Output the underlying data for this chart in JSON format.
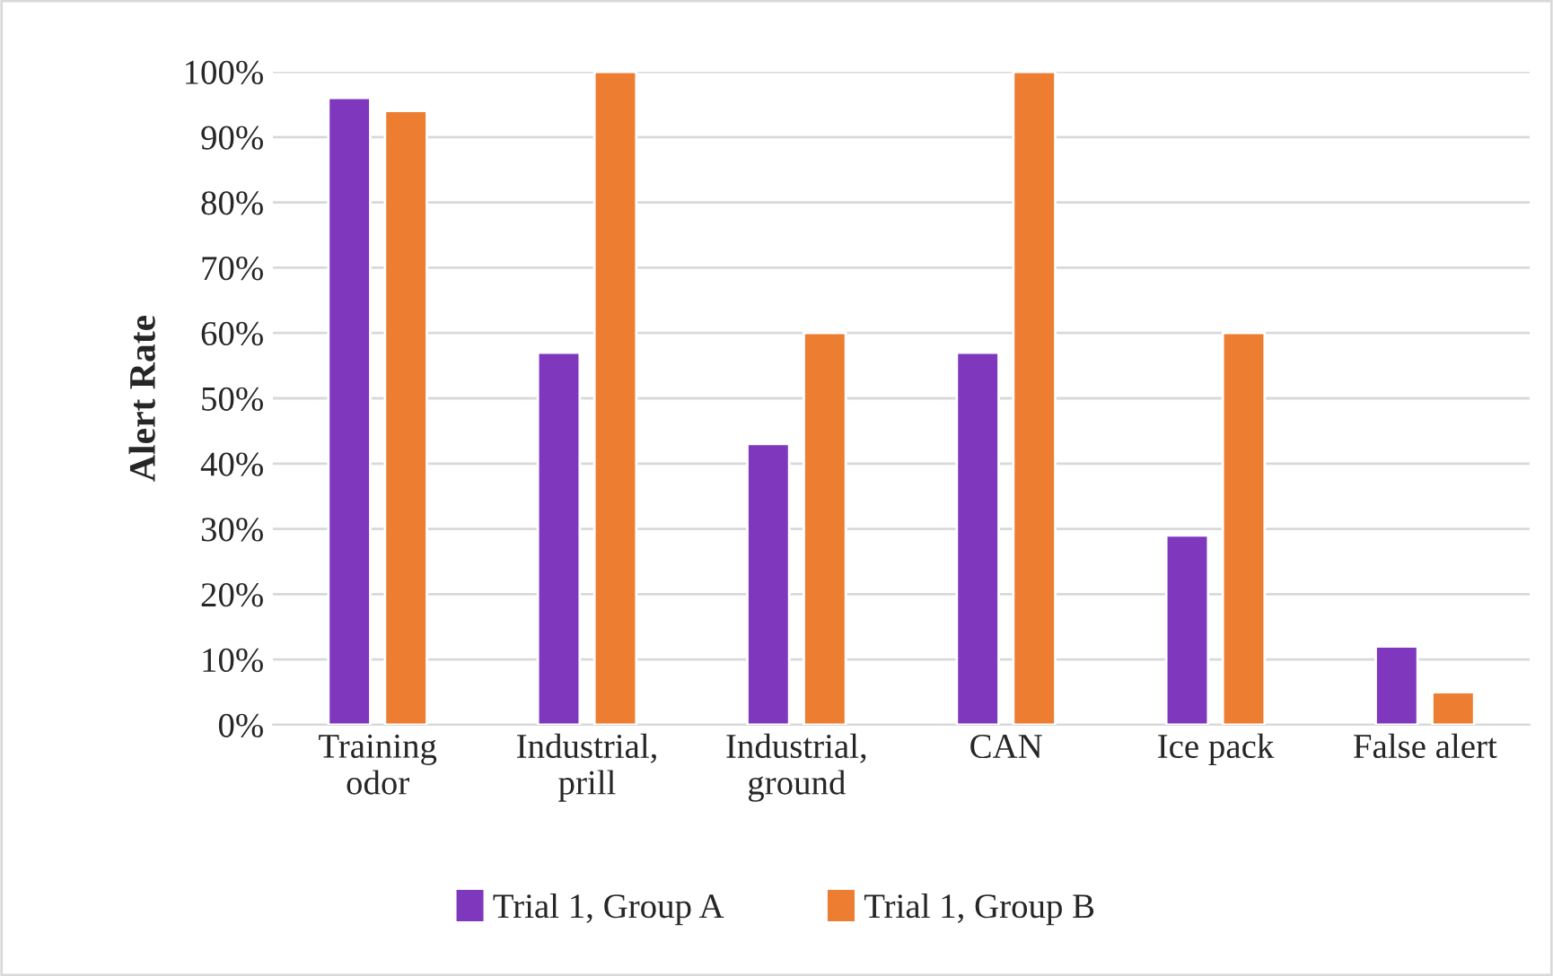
{
  "chart_data": {
    "type": "bar",
    "ylabel": "Alert Rate",
    "categories": [
      "Training\nodor",
      "Industrial,\nprill",
      "Industrial,\nground",
      "CAN",
      "Ice pack",
      "False alert"
    ],
    "series": [
      {
        "name": "Trial 1, Group A",
        "color": "#7f38bd",
        "values": [
          96,
          57,
          43,
          57,
          29,
          12
        ]
      },
      {
        "name": "Trial 1, Group B",
        "color": "#ed7d31",
        "values": [
          94,
          100,
          60,
          100,
          60,
          5
        ]
      }
    ],
    "ylim": [
      0,
      100
    ],
    "yticks": [
      {
        "value": 0,
        "label": "0%"
      },
      {
        "value": 10,
        "label": "10%"
      },
      {
        "value": 20,
        "label": "20%"
      },
      {
        "value": 30,
        "label": "30%"
      },
      {
        "value": 40,
        "label": "40%"
      },
      {
        "value": 50,
        "label": "50%"
      },
      {
        "value": 60,
        "label": "60%"
      },
      {
        "value": 70,
        "label": "70%"
      },
      {
        "value": 80,
        "label": "80%"
      },
      {
        "value": 90,
        "label": "90%"
      },
      {
        "value": 100,
        "label": "100%"
      }
    ],
    "grid": "y",
    "legend": "bottom"
  }
}
